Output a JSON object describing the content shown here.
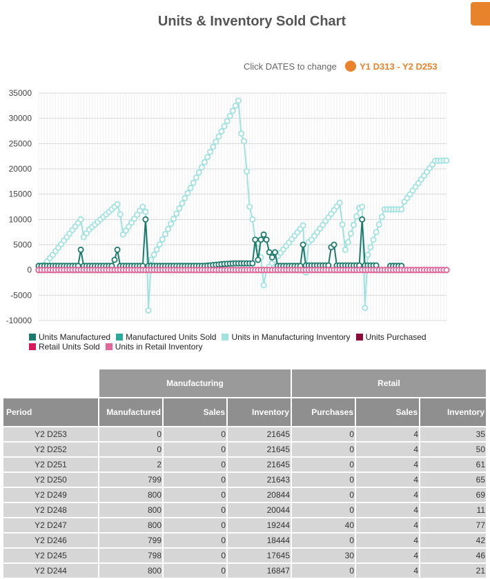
{
  "header": {
    "title": "Units & Inventory Sold Chart",
    "date_prompt": "Click DATES to change",
    "date_range": "Y1 D313 - Y2 D253"
  },
  "chart_data": {
    "type": "line",
    "ylim": [
      -10000,
      35000
    ],
    "yticks": [
      35000,
      30000,
      25000,
      20000,
      15000,
      10000,
      5000,
      0,
      -5000,
      -10000
    ],
    "n_points": 130,
    "series": [
      {
        "name": "Units Manufactured",
        "color": "#1b7a6b",
        "points": [
          [
            0,
            800
          ],
          [
            14,
            800
          ],
          [
            15,
            4000
          ],
          [
            16,
            800
          ],
          [
            26,
            800
          ],
          [
            27,
            2000
          ],
          [
            28,
            4000
          ],
          [
            29,
            800
          ],
          [
            37,
            800
          ],
          [
            38,
            10000
          ],
          [
            39,
            800
          ],
          [
            59,
            800
          ],
          [
            66,
            1200
          ],
          [
            70,
            1300
          ],
          [
            74,
            1300
          ],
          [
            76,
            1300
          ],
          [
            77,
            6000
          ],
          [
            78,
            2000
          ],
          [
            79,
            6000
          ],
          [
            80,
            7000
          ],
          [
            81,
            6000
          ],
          [
            82,
            3500
          ],
          [
            83,
            2500
          ],
          [
            84,
            3500
          ],
          [
            85,
            800
          ],
          [
            93,
            800
          ],
          [
            94,
            5000
          ],
          [
            95,
            900
          ],
          [
            103,
            900
          ],
          [
            104,
            4500
          ],
          [
            105,
            5000
          ],
          [
            106,
            900
          ],
          [
            114,
            900
          ],
          [
            115,
            10000
          ],
          [
            116,
            900
          ],
          [
            120,
            900
          ],
          [
            121,
            0
          ],
          [
            124,
            0
          ],
          [
            125,
            800
          ],
          [
            129,
            800
          ]
        ]
      },
      {
        "name": "Manufactured Units Sold",
        "color": "#2ba99a",
        "points": [
          [
            0,
            0
          ],
          [
            129,
            0
          ]
        ]
      },
      {
        "name": "Units in Manufacturing Inventory",
        "color": "#a0e2e0",
        "points": [
          [
            0,
            0
          ],
          [
            2,
            1000
          ],
          [
            5,
            3000
          ],
          [
            15,
            10000
          ],
          [
            16,
            6500
          ],
          [
            18,
            8000
          ],
          [
            21,
            9500
          ],
          [
            28,
            13000
          ],
          [
            29,
            11000
          ],
          [
            30,
            7000
          ],
          [
            37,
            12500
          ],
          [
            38,
            11500
          ],
          [
            39,
            -8000
          ],
          [
            40,
            2000
          ],
          [
            70,
            32500
          ],
          [
            71,
            33500
          ],
          [
            72,
            27000
          ],
          [
            73,
            25500
          ],
          [
            74,
            19500
          ],
          [
            75,
            12500
          ],
          [
            76,
            10000
          ],
          [
            77,
            6000
          ],
          [
            79,
            2500
          ],
          [
            80,
            -3000
          ],
          [
            81,
            0
          ],
          [
            94,
            8800
          ],
          [
            95,
            -500
          ],
          [
            96,
            5500
          ],
          [
            97,
            6000
          ],
          [
            107,
            13300
          ],
          [
            108,
            9000
          ],
          [
            109,
            4000
          ],
          [
            110,
            5500
          ],
          [
            114,
            12300
          ],
          [
            115,
            12500
          ],
          [
            116,
            -7500
          ],
          [
            117,
            3000
          ],
          [
            123,
            12000
          ],
          [
            129,
            12000
          ],
          [
            130,
            13500
          ],
          [
            141,
            21600
          ],
          [
            145,
            21645
          ]
        ]
      },
      {
        "name": "Units Purchased",
        "color": "#8b0a3a",
        "points": [
          [
            0,
            0
          ],
          [
            145,
            0
          ]
        ]
      },
      {
        "name": "Retail Units Sold",
        "color": "#d6195b",
        "points": [
          [
            0,
            0
          ],
          [
            145,
            0
          ]
        ]
      },
      {
        "name": "Units in Retail Inventory",
        "color": "#e5669a",
        "points": [
          [
            0,
            0
          ],
          [
            145,
            0
          ]
        ]
      }
    ]
  },
  "table": {
    "groups": [
      "Manufacturing",
      "Retail"
    ],
    "columns": [
      "Period",
      "Manufactured",
      "Sales",
      "Inventory",
      "Purchases",
      "Sales",
      "Inventory"
    ],
    "rows": [
      [
        "Y2 D253",
        "0",
        "0",
        "21645",
        "0",
        "4",
        "35"
      ],
      [
        "Y2 D252",
        "0",
        "0",
        "21645",
        "0",
        "4",
        "50"
      ],
      [
        "Y2 D251",
        "2",
        "0",
        "21645",
        "0",
        "4",
        "61"
      ],
      [
        "Y2 D250",
        "799",
        "0",
        "21643",
        "0",
        "4",
        "65"
      ],
      [
        "Y2 D249",
        "800",
        "0",
        "20844",
        "0",
        "4",
        "69"
      ],
      [
        "Y2 D248",
        "800",
        "0",
        "20044",
        "0",
        "4",
        "11"
      ],
      [
        "Y2 D247",
        "800",
        "0",
        "19244",
        "40",
        "4",
        "77"
      ],
      [
        "Y2 D246",
        "799",
        "0",
        "18444",
        "0",
        "4",
        "42"
      ],
      [
        "Y2 D245",
        "798",
        "0",
        "17645",
        "30",
        "4",
        "46"
      ],
      [
        "Y2 D244",
        "800",
        "0",
        "16847",
        "0",
        "4",
        "21"
      ]
    ]
  }
}
